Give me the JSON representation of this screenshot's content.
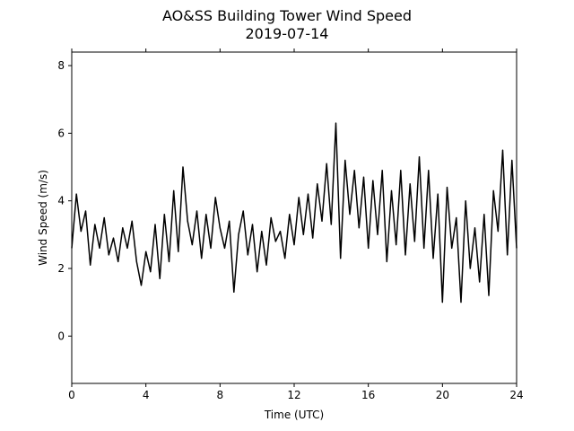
{
  "chart_data": {
    "type": "line",
    "title_line1": "AO&SS Building Tower Wind Speed",
    "title_line2": "2019-07-14",
    "xlabel": "Time (UTC)",
    "ylabel": "Wind Speed (m/s)",
    "xlim": [
      0,
      24
    ],
    "ylim": [
      -1.4,
      8.4
    ],
    "xticks": [
      0,
      4,
      8,
      12,
      16,
      20,
      24
    ],
    "yticks": [
      0,
      2,
      4,
      6,
      8
    ],
    "grid": false,
    "line_color": "#000000",
    "series": [
      {
        "x": [
          0.0,
          0.25,
          0.5,
          0.75,
          1.0,
          1.25,
          1.5,
          1.75,
          2.0,
          2.25,
          2.5,
          2.75,
          3.0,
          3.25,
          3.5,
          3.75,
          4.0,
          4.25,
          4.5,
          4.75,
          5.0,
          5.25,
          5.5,
          5.75,
          6.0,
          6.25,
          6.5,
          6.75,
          7.0,
          7.25,
          7.5,
          7.75,
          8.0,
          8.25,
          8.5,
          8.75,
          9.0,
          9.25,
          9.5,
          9.75,
          10.0,
          10.25,
          10.5,
          10.75,
          11.0,
          11.25,
          11.5,
          11.75,
          12.0,
          12.25,
          12.5,
          12.75,
          13.0,
          13.25,
          13.5,
          13.75,
          14.0,
          14.25,
          14.5,
          14.75,
          15.0,
          15.25,
          15.5,
          15.75,
          16.0,
          16.25,
          16.5,
          16.75,
          17.0,
          17.25,
          17.5,
          17.75,
          18.0,
          18.25,
          18.5,
          18.75,
          19.0,
          19.25,
          19.5,
          19.75,
          20.0,
          20.25,
          20.5,
          20.75,
          21.0,
          21.25,
          21.5,
          21.75,
          22.0,
          22.25,
          22.5,
          22.75,
          23.0,
          23.25,
          23.5,
          23.75,
          24.0
        ],
        "values": [
          2.6,
          4.2,
          3.1,
          3.7,
          2.1,
          3.3,
          2.6,
          3.5,
          2.4,
          2.9,
          2.2,
          3.2,
          2.6,
          3.4,
          2.2,
          1.5,
          2.5,
          1.9,
          3.3,
          1.7,
          3.6,
          2.2,
          4.3,
          2.5,
          5.0,
          3.4,
          2.7,
          3.7,
          2.3,
          3.6,
          2.6,
          4.1,
          3.2,
          2.6,
          3.4,
          1.3,
          3.0,
          3.7,
          2.4,
          3.3,
          1.9,
          3.1,
          2.1,
          3.5,
          2.8,
          3.1,
          2.3,
          3.6,
          2.7,
          4.1,
          3.0,
          4.2,
          2.9,
          4.5,
          3.4,
          5.1,
          3.3,
          6.3,
          2.3,
          5.2,
          3.6,
          4.9,
          3.2,
          4.7,
          2.6,
          4.6,
          3.0,
          4.9,
          2.2,
          4.3,
          2.7,
          4.9,
          2.4,
          4.5,
          2.8,
          5.3,
          2.6,
          4.9,
          2.3,
          4.2,
          1.0,
          4.4,
          2.6,
          3.5,
          1.0,
          4.0,
          2.0,
          3.2,
          1.6,
          3.6,
          1.2,
          4.3,
          3.1,
          5.5,
          2.4,
          5.2,
          2.6
        ]
      }
    ]
  }
}
